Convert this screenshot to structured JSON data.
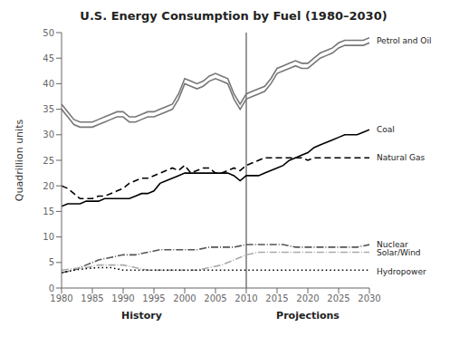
{
  "chart_data": {
    "type": "line",
    "title": "U.S. Energy Consumption by Fuel (1980–2030)",
    "ylabel": "Quadrillion units",
    "xlim": [
      1980,
      2030
    ],
    "ylim": [
      0,
      50
    ],
    "xticks": [
      1980,
      1985,
      1990,
      1995,
      2000,
      2005,
      2010,
      2015,
      2020,
      2025,
      2030
    ],
    "yticks": [
      0,
      5,
      10,
      15,
      20,
      25,
      30,
      35,
      40,
      45,
      50
    ],
    "grid": false,
    "series": [
      {
        "color": "#777777",
        "line_style": "solid",
        "x": [
          1980,
          1981,
          1982,
          1983,
          1984,
          1985,
          1986,
          1987,
          1988,
          1989,
          1990,
          1991,
          1992,
          1993,
          1994,
          1995,
          1996,
          1997,
          1998,
          1999,
          2000,
          2001,
          2002,
          2003,
          2004,
          2005,
          2006,
          2007,
          2008,
          2009,
          2010,
          2011,
          2012,
          2013,
          2014,
          2015,
          2016,
          2017,
          2018,
          2019,
          2020,
          2021,
          2022,
          2023,
          2024,
          2025,
          2026,
          2027,
          2028,
          2029,
          2030
        ],
        "values": [
          35.0,
          33.5,
          32.0,
          31.5,
          31.5,
          31.5,
          32.0,
          32.5,
          33.0,
          33.5,
          33.5,
          32.5,
          32.5,
          33.0,
          33.5,
          33.5,
          34.0,
          34.5,
          35.0,
          37.0,
          40.0,
          39.5,
          39.0,
          39.5,
          40.5,
          41.0,
          40.5,
          40.0,
          37.0,
          35.0,
          37.0,
          37.5,
          38.0,
          38.5,
          40.0,
          42.0,
          42.5,
          43.0,
          43.5,
          43.0,
          43.0,
          44.0,
          45.0,
          45.5,
          46.0,
          47.0,
          47.5,
          47.5,
          47.5,
          47.5,
          48.0
        ]
      },
      {
        "color": "#777777",
        "line_style": "solid",
        "x": [
          1980,
          1981,
          1982,
          1983,
          1984,
          1985,
          1986,
          1987,
          1988,
          1989,
          1990,
          1991,
          1992,
          1993,
          1994,
          1995,
          1996,
          1997,
          1998,
          1999,
          2000,
          2001,
          2002,
          2003,
          2004,
          2005,
          2006,
          2007,
          2008,
          2009,
          2010,
          2011,
          2012,
          2013,
          2014,
          2015,
          2016,
          2017,
          2018,
          2019,
          2020,
          2021,
          2022,
          2023,
          2024,
          2025,
          2026,
          2027,
          2028,
          2029,
          2030
        ],
        "values": [
          36.0,
          34.5,
          33.0,
          32.5,
          32.5,
          32.5,
          33.0,
          33.5,
          34.0,
          34.5,
          34.5,
          33.5,
          33.5,
          34.0,
          34.5,
          34.5,
          35.0,
          35.5,
          36.0,
          38.0,
          41.0,
          40.5,
          40.0,
          40.5,
          41.5,
          42.0,
          41.5,
          41.0,
          38.0,
          36.0,
          38.0,
          38.5,
          39.0,
          39.5,
          41.0,
          43.0,
          43.5,
          44.0,
          44.5,
          44.0,
          44.0,
          45.0,
          46.0,
          46.5,
          47.0,
          48.0,
          48.5,
          48.5,
          48.5,
          48.5,
          49.0
        ]
      },
      {
        "color": "#000000",
        "line_style": "solid",
        "x": [
          1980,
          1981,
          1982,
          1983,
          1984,
          1985,
          1986,
          1987,
          1988,
          1989,
          1990,
          1991,
          1992,
          1993,
          1994,
          1995,
          1996,
          1997,
          1998,
          1999,
          2000,
          2001,
          2002,
          2003,
          2004,
          2005,
          2006,
          2007,
          2008,
          2009,
          2010,
          2011,
          2012,
          2013,
          2014,
          2015,
          2016,
          2017,
          2018,
          2019,
          2020,
          2021,
          2022,
          2023,
          2024,
          2025,
          2026,
          2027,
          2028,
          2029,
          2030
        ],
        "values": [
          16.0,
          16.5,
          16.5,
          16.5,
          17.0,
          17.0,
          17.0,
          17.5,
          17.5,
          17.5,
          17.5,
          17.5,
          18.0,
          18.5,
          18.5,
          19.0,
          20.5,
          21.0,
          21.5,
          22.0,
          22.5,
          22.5,
          22.5,
          22.5,
          22.5,
          22.5,
          22.5,
          22.5,
          22.0,
          21.0,
          22.0,
          22.0,
          22.0,
          22.5,
          23.0,
          23.5,
          24.0,
          25.0,
          25.5,
          26.0,
          26.5,
          27.5,
          28.0,
          28.5,
          29.0,
          29.5,
          30.0,
          30.0,
          30.0,
          30.5,
          31.0
        ]
      },
      {
        "color": "#000000",
        "line_style": "dashed",
        "x": [
          1980,
          1981,
          1982,
          1983,
          1984,
          1985,
          1986,
          1987,
          1988,
          1989,
          1990,
          1991,
          1992,
          1993,
          1994,
          1995,
          1996,
          1997,
          1998,
          1999,
          2000,
          2001,
          2002,
          2003,
          2004,
          2005,
          2006,
          2007,
          2008,
          2009,
          2010,
          2011,
          2012,
          2013,
          2014,
          2015,
          2016,
          2017,
          2018,
          2019,
          2020,
          2021,
          2022,
          2023,
          2024,
          2025,
          2026,
          2027,
          2028,
          2029,
          2030
        ],
        "values": [
          20.0,
          19.5,
          18.5,
          17.5,
          17.5,
          17.5,
          18.0,
          18.0,
          18.5,
          19.0,
          19.5,
          20.5,
          21.0,
          21.5,
          21.5,
          22.0,
          22.5,
          23.0,
          23.5,
          23.0,
          24.0,
          22.5,
          23.0,
          23.5,
          23.5,
          22.5,
          22.5,
          23.0,
          23.5,
          23.0,
          24.0,
          24.5,
          25.0,
          25.5,
          25.5,
          25.5,
          25.5,
          25.5,
          25.5,
          25.5,
          25.0,
          25.5,
          25.5,
          25.5,
          25.5,
          25.5,
          25.5,
          25.5,
          25.5,
          25.5,
          25.5
        ]
      },
      {
        "color": "#555555",
        "line_style": "dashdot",
        "x": [
          1980,
          1982,
          1984,
          1986,
          1988,
          1990,
          1992,
          1994,
          1996,
          1998,
          2000,
          2002,
          2004,
          2006,
          2008,
          2010,
          2012,
          2014,
          2016,
          2018,
          2020,
          2022,
          2024,
          2026,
          2028,
          2030
        ],
        "values": [
          3.0,
          3.5,
          4.5,
          5.5,
          6.0,
          6.5,
          6.5,
          7.0,
          7.5,
          7.5,
          7.5,
          7.5,
          8.0,
          8.0,
          8.0,
          8.5,
          8.5,
          8.5,
          8.5,
          8.0,
          8.0,
          8.0,
          8.0,
          8.0,
          8.0,
          8.5
        ]
      },
      {
        "color": "#aaaaaa",
        "line_style": "dashdot",
        "x": [
          1980,
          1982,
          1984,
          1986,
          1988,
          1990,
          1992,
          1994,
          1996,
          1998,
          2000,
          2002,
          2004,
          2006,
          2008,
          2010,
          2012,
          2014,
          2016,
          2018,
          2020,
          2022,
          2024,
          2026,
          2028,
          2030
        ],
        "values": [
          3.5,
          3.8,
          4.0,
          4.5,
          4.5,
          4.5,
          4.0,
          3.5,
          3.5,
          3.5,
          3.5,
          3.5,
          4.0,
          4.5,
          5.5,
          6.5,
          7.0,
          7.0,
          7.0,
          7.0,
          7.0,
          7.0,
          7.0,
          7.0,
          7.0,
          7.0
        ]
      },
      {
        "color": "#000000",
        "line_style": "dotted",
        "x": [
          1980,
          1982,
          1984,
          1986,
          1988,
          1990,
          1992,
          1994,
          1996,
          1998,
          2000,
          2002,
          2004,
          2006,
          2008,
          2010,
          2012,
          2014,
          2016,
          2018,
          2020,
          2022,
          2024,
          2026,
          2028,
          2030
        ],
        "values": [
          3.0,
          3.5,
          3.8,
          4.0,
          4.0,
          3.5,
          3.5,
          3.5,
          3.5,
          3.5,
          3.5,
          3.5,
          3.5,
          3.5,
          3.5,
          3.5,
          3.5,
          3.5,
          3.5,
          3.5,
          3.5,
          3.5,
          3.5,
          3.5,
          3.5,
          3.5
        ]
      }
    ],
    "annotations": [
      {
        "text": "Petrol and Oil",
        "y": 48.5
      },
      {
        "text": "Coal",
        "y": 31.0
      },
      {
        "text": "Natural Gas",
        "y": 25.5
      },
      {
        "text": "Nuclear",
        "y": 8.5
      },
      {
        "text": "Solar/Wind",
        "y": 7.0
      },
      {
        "text": "Hydropower",
        "y": 3.2
      }
    ],
    "vline": 2010,
    "x_labels": [
      {
        "text": "History",
        "x": 1993
      },
      {
        "text": "Projections",
        "x": 2020
      }
    ]
  }
}
